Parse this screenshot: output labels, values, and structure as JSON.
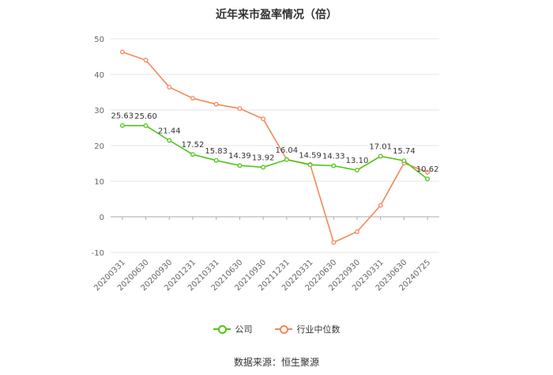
{
  "chart_data": {
    "type": "line",
    "title": "近年来市盈率情况（倍）",
    "categories": [
      "20200331",
      "20200630",
      "20200930",
      "20201231",
      "20210331",
      "20210630",
      "20210930",
      "20211231",
      "20220331",
      "20220630",
      "20220930",
      "20230331",
      "20230630",
      "20240725"
    ],
    "ylim": [
      -10,
      50
    ],
    "yticks": [
      -10,
      0,
      10,
      20,
      30,
      40,
      50
    ],
    "grid": true,
    "legend_position": "bottom",
    "series": [
      {
        "name": "公司",
        "color": "#52c41a",
        "values": [
          25.63,
          25.6,
          21.44,
          17.52,
          15.83,
          14.39,
          13.92,
          16.04,
          14.59,
          14.33,
          13.1,
          17.01,
          15.74,
          10.62
        ],
        "labels": [
          "25.63",
          "25.60",
          "21.44",
          "17.52",
          "15.83",
          "14.39",
          "13.92",
          "16.04",
          "14.59",
          "14.33",
          "13.10",
          "17.01",
          "15.74",
          "10.62"
        ]
      },
      {
        "name": "行业中位数",
        "color": "#f4875a",
        "values": [
          46.3,
          44.0,
          36.4,
          33.3,
          31.6,
          30.4,
          27.5,
          16.1,
          14.7,
          -7.2,
          -4.2,
          3.2,
          15.1,
          12.5
        ]
      }
    ]
  },
  "source": "数据来源：恒生聚源"
}
